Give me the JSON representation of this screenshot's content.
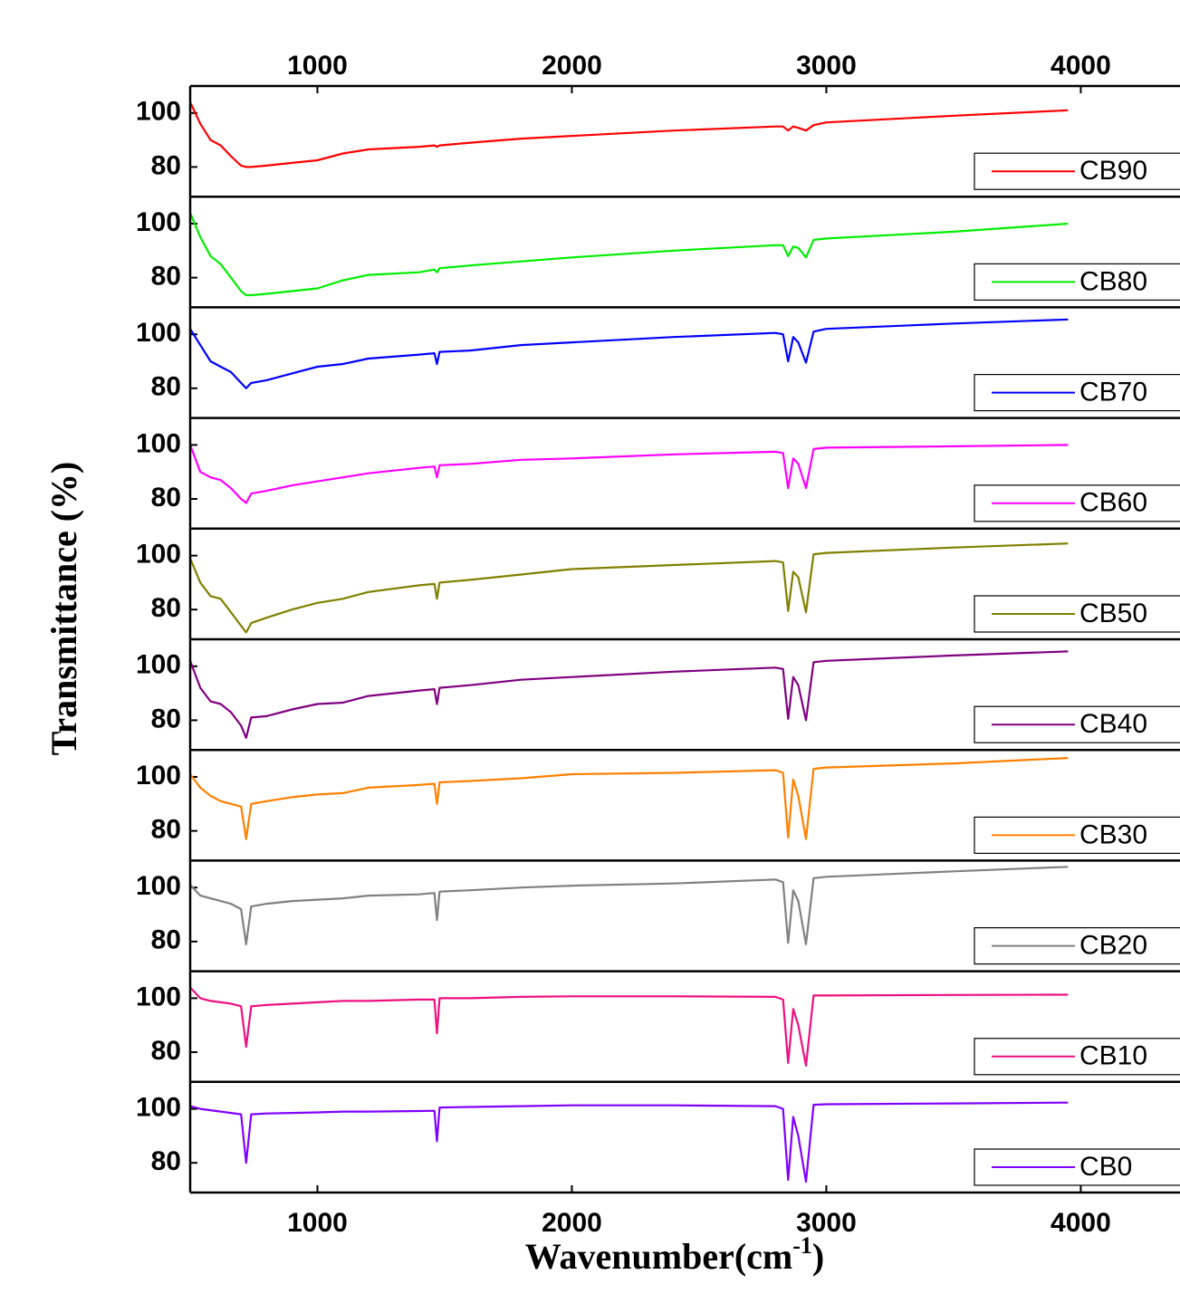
{
  "chart_data": {
    "type": "line",
    "x_label": "Wavenumber(cm",
    "x_label_sup": "-1",
    "x_label_end": ")",
    "y_label": "Transmittance (%)",
    "xlim": [
      500,
      4390
    ],
    "xticks": [
      1000,
      2000,
      3000,
      4000
    ],
    "ylim": [
      69,
      110
    ],
    "yticks": [
      80,
      100
    ],
    "x": [
      500,
      540,
      580,
      620,
      660,
      700,
      720,
      740,
      800,
      900,
      1000,
      1100,
      1200,
      1400,
      1460,
      1470,
      1480,
      1600,
      1800,
      2000,
      2400,
      2800,
      2830,
      2850,
      2870,
      2890,
      2920,
      2950,
      3000,
      3500,
      3950
    ],
    "series": [
      {
        "name": "CB90",
        "color": "#ff0000",
        "values": [
          104,
          96,
          90,
          88,
          84,
          80.5,
          80,
          80,
          80.5,
          81.5,
          82.5,
          85,
          86.5,
          87.5,
          88,
          87.5,
          88,
          89,
          90.5,
          91.5,
          93.5,
          95,
          95,
          93.5,
          95,
          94.5,
          93.5,
          95.5,
          96.5,
          99,
          101
        ]
      },
      {
        "name": "CB80",
        "color": "#00ee00",
        "values": [
          104,
          95,
          88,
          85,
          80,
          75,
          73.5,
          73.5,
          74,
          75,
          76,
          79,
          81,
          82,
          83,
          82,
          83.5,
          84.5,
          86,
          87.5,
          90,
          92,
          92,
          88,
          91.5,
          91,
          87.5,
          94,
          94.5,
          97,
          100
        ]
      },
      {
        "name": "CB70",
        "color": "#0000ff",
        "values": [
          102,
          96,
          90,
          88,
          86,
          82,
          80,
          82,
          83,
          85.5,
          88,
          89,
          91,
          92.5,
          93,
          89,
          93.5,
          94,
          96,
          97,
          99,
          100.5,
          100,
          90,
          99,
          97,
          89.5,
          101,
          102,
          104,
          105.5
        ]
      },
      {
        "name": "CB60",
        "color": "#ff00ff",
        "values": [
          100,
          90,
          88,
          87,
          84,
          80,
          78.5,
          82,
          83,
          85,
          86.5,
          88,
          89.5,
          91.5,
          92,
          88,
          92.5,
          93,
          94.5,
          95,
          96.5,
          97.5,
          97,
          84,
          95,
          93,
          84,
          98.5,
          99,
          99.5,
          100
        ]
      },
      {
        "name": "CB50",
        "color": "#808000",
        "values": [
          99,
          90,
          85,
          84,
          79,
          74,
          71.5,
          75,
          77,
          80,
          82.5,
          84,
          86.5,
          89,
          89.5,
          84,
          90,
          91,
          93,
          95,
          96.5,
          98,
          97.5,
          79.5,
          94,
          92,
          79,
          100.5,
          101,
          103,
          104.5
        ]
      },
      {
        "name": "CB40",
        "color": "#800080",
        "values": [
          102,
          92,
          87,
          86,
          83,
          78,
          73.5,
          81,
          81.5,
          84,
          86,
          86.5,
          89,
          91,
          91.5,
          86,
          92,
          93,
          95,
          96,
          98,
          99.5,
          99,
          80.5,
          96,
          93,
          80,
          101.5,
          102,
          104,
          105.5
        ]
      },
      {
        "name": "CB30",
        "color": "#ff8000",
        "values": [
          101,
          96,
          93,
          91,
          90,
          89,
          77,
          90,
          91,
          92.5,
          93.5,
          94,
          96,
          97,
          97.5,
          90,
          98,
          98.5,
          99.5,
          101,
          101.5,
          102.5,
          101.5,
          77.5,
          99,
          93,
          77,
          103,
          103.5,
          105,
          107
        ]
      },
      {
        "name": "CB20",
        "color": "#808080",
        "values": [
          101,
          97,
          96,
          95,
          94,
          92,
          79,
          93,
          94,
          95,
          95.5,
          96,
          97,
          97.5,
          98,
          88,
          98.5,
          99,
          100,
          100.7,
          101.5,
          103,
          102,
          79.5,
          99,
          95,
          79,
          103.5,
          104,
          106,
          107.7
        ]
      },
      {
        "name": "CB10",
        "color": "#ee1080",
        "values": [
          104,
          100,
          99,
          98.5,
          98,
          97,
          82,
          97,
          97.5,
          98,
          98.5,
          99,
          99,
          99.5,
          99.5,
          87,
          100,
          100,
          100.5,
          100.7,
          100.7,
          100.5,
          99.5,
          76,
          96,
          90,
          75,
          101,
          101,
          101.2,
          101.3
        ]
      },
      {
        "name": "CB0",
        "color": "#8000ff",
        "values": [
          101,
          100,
          99.5,
          99,
          98.5,
          98,
          80,
          98,
          98.3,
          98.5,
          98.7,
          99,
          99,
          99.2,
          99.3,
          88,
          100.5,
          100.7,
          101,
          101.3,
          101.3,
          101,
          100,
          73.7,
          97,
          90,
          73,
          101.5,
          101.7,
          102,
          102.3
        ]
      }
    ]
  }
}
